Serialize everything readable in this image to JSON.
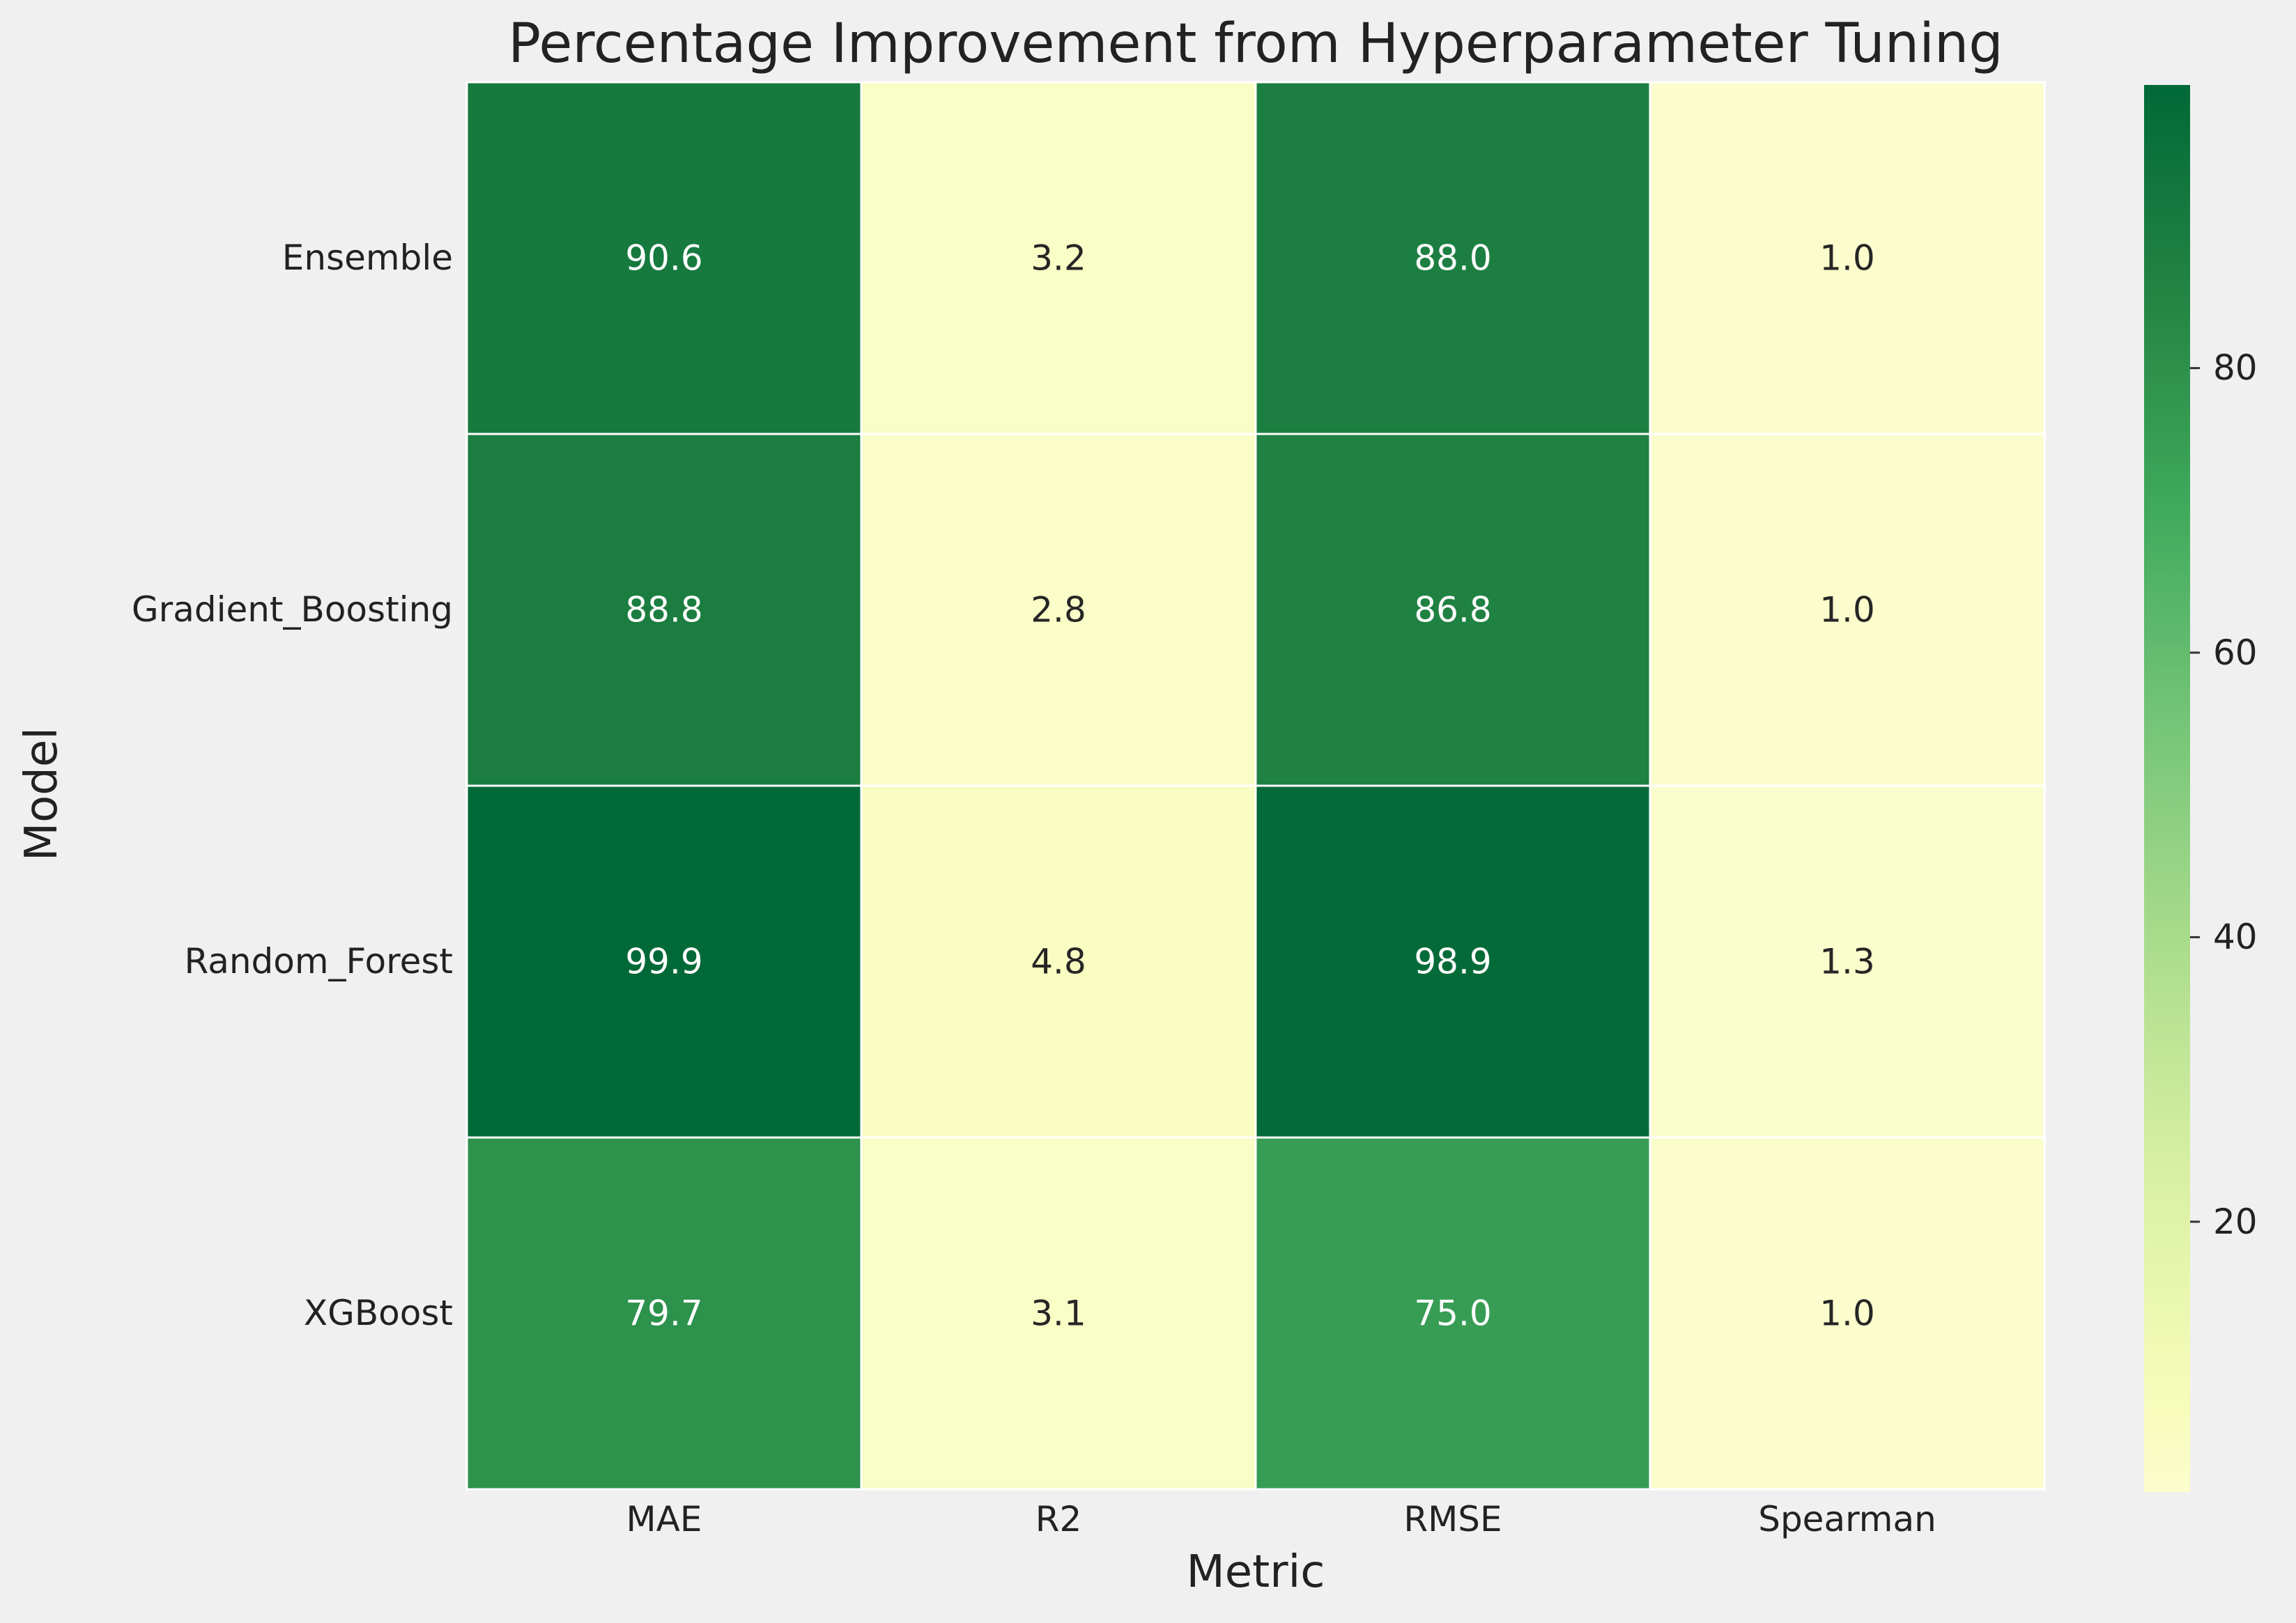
{
  "chart_data": {
    "type": "heatmap",
    "title": "Percentage Improvement from Hyperparameter Tuning",
    "xlabel": "Metric",
    "ylabel": "Model",
    "x_categories": [
      "MAE",
      "R2",
      "RMSE",
      "Spearman"
    ],
    "y_categories": [
      "Ensemble",
      "Gradient_Boosting",
      "Random_Forest",
      "XGBoost"
    ],
    "values": [
      [
        90.6,
        3.2,
        88.0,
        1.0
      ],
      [
        88.8,
        2.8,
        86.8,
        1.0
      ],
      [
        99.9,
        4.8,
        98.9,
        1.3
      ],
      [
        79.7,
        3.1,
        75.0,
        1.0
      ]
    ],
    "value_labels": [
      [
        "90.6",
        "3.2",
        "88.0",
        "1.0"
      ],
      [
        "88.8",
        "2.8",
        "86.8",
        "1.0"
      ],
      [
        "99.9",
        "4.8",
        "98.9",
        "1.3"
      ],
      [
        "79.7",
        "3.1",
        "75.0",
        "1.0"
      ]
    ],
    "colormap": "YlGn",
    "vmin": 1.0,
    "vmax": 99.9,
    "colorbar_ticks": [
      "20",
      "40",
      "60",
      "80"
    ],
    "colorbar_tick_values": [
      20,
      40,
      60,
      80
    ],
    "grid": false,
    "colors": {
      "background": "#f0f0f0",
      "cell_border": "#ffffff",
      "low": "#ffffcc",
      "high": "#006837"
    }
  }
}
